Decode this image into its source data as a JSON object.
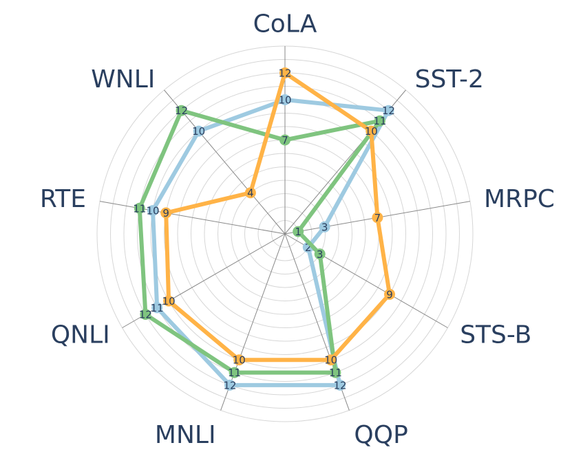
{
  "chart_data": {
    "type": "radar",
    "title": "",
    "axes": [
      "CoLA",
      "SST-2",
      "MRPC",
      "STS-B",
      "QQP",
      "MNLI",
      "QNLI",
      "RTE",
      "WNLI"
    ],
    "rmax": 14,
    "rings": [
      1,
      2,
      3,
      4,
      5,
      6,
      7,
      8,
      9,
      10,
      11,
      12,
      13,
      14
    ],
    "grid": true,
    "legend": "none",
    "series": [
      {
        "color": "#9ecae1",
        "values": [
          10,
          12,
          3,
          2,
          12,
          12,
          11,
          10,
          10
        ]
      },
      {
        "color": "#7fc47f",
        "values": [
          7,
          11,
          1,
          3,
          11,
          11,
          12,
          11,
          12
        ]
      },
      {
        "color": "#ffb347",
        "values": [
          12,
          10,
          7,
          9,
          10,
          10,
          10,
          9,
          4
        ]
      }
    ]
  }
}
